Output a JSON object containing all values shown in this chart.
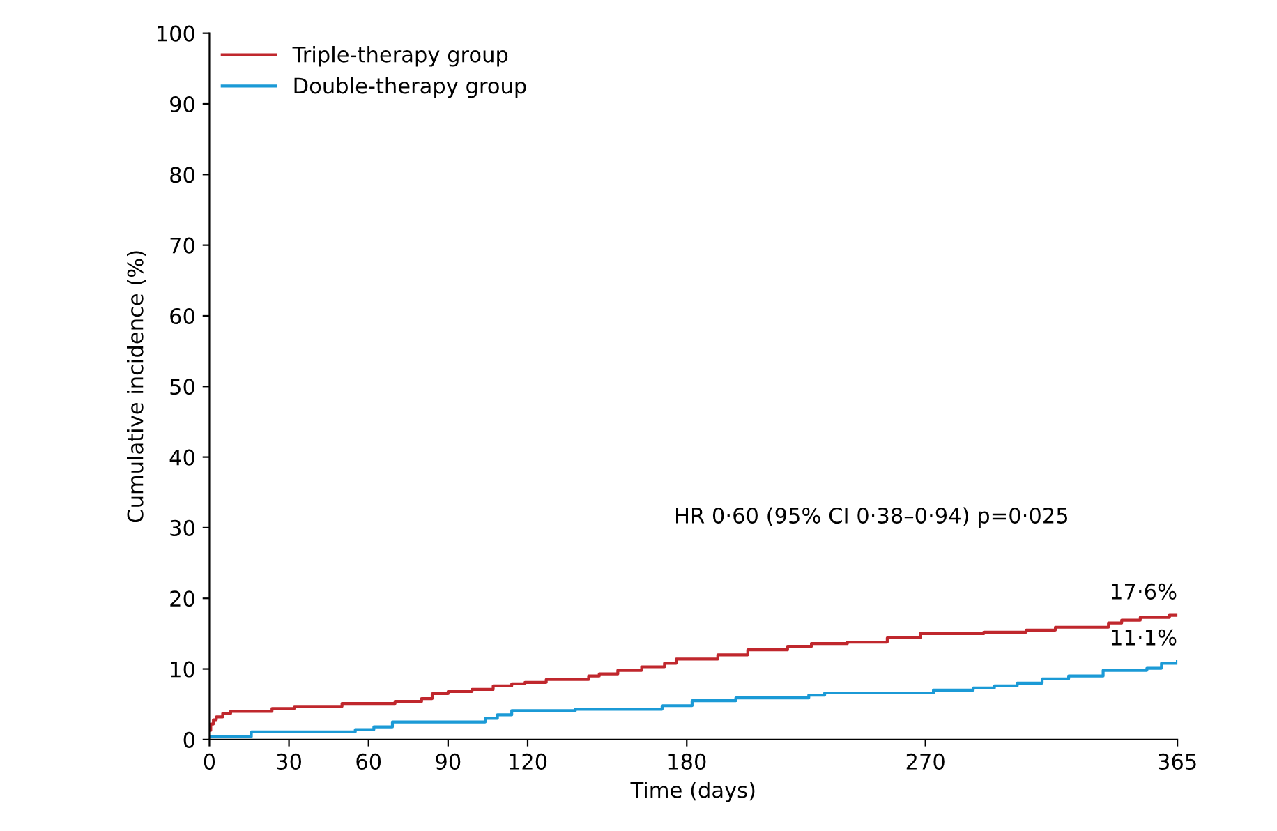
{
  "chart_data": {
    "type": "step",
    "xlabel": "Time (days)",
    "ylabel": "Cumulative incidence (%)",
    "series": [
      {
        "name": "Triple-therapy group",
        "color": "#c0272d",
        "x": [
          0,
          0.5,
          1.5,
          2.6,
          5,
          8,
          23.6,
          32,
          50,
          70,
          80,
          84,
          90,
          99,
          107,
          114,
          119,
          127,
          143,
          147,
          154,
          163,
          171.6,
          176,
          191.7,
          203,
          218,
          227,
          240.6,
          255.6,
          268,
          292,
          308,
          319,
          339,
          344,
          351,
          362,
          365
        ],
        "values": [
          1.3,
          2.2,
          2.8,
          3.2,
          3.7,
          4.0,
          4.4,
          4.7,
          5.1,
          5.4,
          5.8,
          6.5,
          6.8,
          7.1,
          7.6,
          7.9,
          8.1,
          8.5,
          9.0,
          9.3,
          9.8,
          10.3,
          10.8,
          11.4,
          12.0,
          12.7,
          13.2,
          13.6,
          13.8,
          14.4,
          15.0,
          15.2,
          15.5,
          15.9,
          16.5,
          16.9,
          17.3,
          17.6,
          17.6
        ]
      },
      {
        "name": "Double-therapy group",
        "color": "#1b9ad6",
        "x": [
          0,
          15.8,
          55,
          62,
          69,
          104,
          108.6,
          114,
          138,
          170.7,
          182,
          198.5,
          226,
          232,
          273,
          288,
          296,
          304.6,
          314,
          324,
          337,
          353.5,
          359,
          365
        ],
        "values": [
          0.4,
          1.1,
          1.4,
          1.8,
          2.5,
          3.0,
          3.5,
          4.1,
          4.3,
          4.8,
          5.5,
          5.9,
          6.3,
          6.6,
          7.0,
          7.3,
          7.6,
          8.0,
          8.6,
          9.0,
          9.8,
          10.1,
          10.8,
          11.1
        ]
      }
    ],
    "xlim": [
      0,
      365
    ],
    "xticks": [
      0,
      30,
      60,
      90,
      120,
      180,
      270,
      365
    ],
    "ylim": [
      0,
      100
    ],
    "yticks": [
      0,
      10,
      20,
      30,
      40,
      50,
      60,
      70,
      80,
      90,
      100
    ],
    "annotations": [
      "HR 0·60 (95% CI 0·38–0·94) p=0·025",
      {
        "text": "17·6%",
        "x": 365,
        "y": 17.6
      },
      {
        "text": "11·1%",
        "x": 365,
        "y": 11.1
      }
    ],
    "legend": "top left",
    "grid": false
  }
}
